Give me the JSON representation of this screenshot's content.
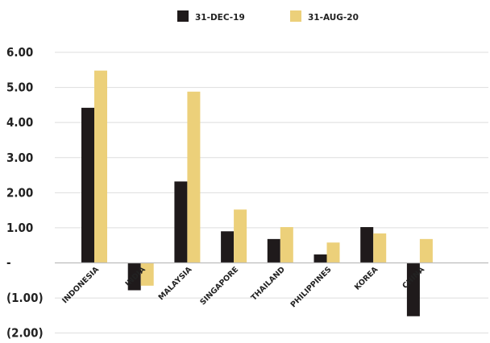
{
  "chart_data": {
    "type": "bar",
    "categories": [
      "INDONESIA",
      "INDIA",
      "MALAYSIA",
      "SINGAPORE",
      "THAILAND",
      "PHILIPPINES",
      "KOREA",
      "CHINA"
    ],
    "series": [
      {
        "name": "31-DEC-19",
        "color": "#1f1a1b",
        "values": [
          4.42,
          -0.78,
          2.32,
          0.9,
          0.68,
          0.24,
          1.02,
          -1.52
        ]
      },
      {
        "name": "31-AUG-20",
        "color": "#ecd07a",
        "values": [
          5.48,
          -0.65,
          4.88,
          1.52,
          1.02,
          0.58,
          0.84,
          0.68
        ]
      }
    ],
    "y_ticks": [
      {
        "value": 6,
        "label": "6.00"
      },
      {
        "value": 5,
        "label": "5.00"
      },
      {
        "value": 4,
        "label": "4.00"
      },
      {
        "value": 3,
        "label": "3.00"
      },
      {
        "value": 2,
        "label": "2.00"
      },
      {
        "value": 1,
        "label": "1.00"
      },
      {
        "value": 0,
        "label": "-"
      },
      {
        "value": -1,
        "label": "(1.00)"
      },
      {
        "value": -2,
        "label": "(2.00)"
      }
    ],
    "ylim": [
      -2,
      6
    ],
    "grid": true,
    "legend_position": "top-center",
    "title": "",
    "xlabel": "",
    "ylabel": ""
  }
}
